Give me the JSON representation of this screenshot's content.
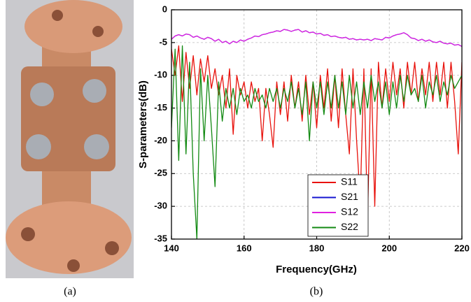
{
  "captions": [
    "(a)",
    "(b)"
  ],
  "chart_data": {
    "type": "line",
    "x_label": "Frequency(GHz)",
    "y_label": "S-parameters(dB)",
    "x": [
      140,
      141,
      142,
      143,
      144,
      145,
      146,
      147,
      148,
      149,
      150,
      151,
      152,
      153,
      154,
      155,
      156,
      157,
      158,
      159,
      160,
      161,
      162,
      163,
      164,
      165,
      166,
      167,
      168,
      169,
      170,
      171,
      172,
      173,
      174,
      175,
      176,
      177,
      178,
      179,
      180,
      181,
      182,
      183,
      184,
      185,
      186,
      187,
      188,
      189,
      190,
      191,
      192,
      193,
      194,
      195,
      196,
      197,
      198,
      199,
      200,
      201,
      202,
      203,
      204,
      205,
      206,
      207,
      208,
      209,
      210,
      211,
      212,
      213,
      214,
      215,
      216,
      217,
      218,
      219,
      220
    ],
    "series": [
      {
        "name": "S11",
        "color": "#e8120c",
        "values": [
          -6,
          -10,
          -5.5,
          -14,
          -6.5,
          -12,
          -7,
          -13,
          -7.5,
          -11,
          -7,
          -12,
          -9,
          -13,
          -10,
          -15,
          -9,
          -19,
          -10,
          -13,
          -11,
          -15,
          -11,
          -14,
          -12,
          -20,
          -12,
          -16,
          -21,
          -11,
          -16,
          -11,
          -17,
          -10,
          -15,
          -11,
          -17,
          -10,
          -16,
          -11,
          -18,
          -10,
          -15,
          -9,
          -17,
          -10,
          -18,
          -9,
          -16,
          -22,
          -9,
          -20,
          -29,
          -9,
          -32,
          -9,
          -30,
          -8,
          -15,
          -9,
          -14,
          -8,
          -13,
          -9,
          -15,
          -8,
          -13,
          -8,
          -14,
          -9,
          -13,
          -8,
          -14,
          -8,
          -13,
          -8,
          -15,
          -8,
          -14,
          -22,
          -8
        ]
      },
      {
        "name": "S21",
        "color": "#1515d0",
        "values": [
          -4.5,
          -4,
          -3.8,
          -4,
          -3.7,
          -3.8,
          -4.2,
          -4,
          -4.3,
          -4.5,
          -4.2,
          -4.4,
          -4.8,
          -4.5,
          -5,
          -4.8,
          -5.2,
          -4.8,
          -5,
          -4.6,
          -4.8,
          -4.5,
          -4.3,
          -4,
          -4.1,
          -3.8,
          -3.7,
          -3.5,
          -3.4,
          -3.2,
          -3.3,
          -3,
          -3.1,
          -3.3,
          -3.1,
          -3,
          -3.4,
          -3.2,
          -3.5,
          -3.4,
          -3.7,
          -3.6,
          -3.9,
          -3.8,
          -4.1,
          -4,
          -4.2,
          -4.3,
          -4.2,
          -4.5,
          -4.4,
          -4.6,
          -4.5,
          -4.6,
          -4.5,
          -4.7,
          -4.4,
          -4.5,
          -4.6,
          -4.2,
          -4.3,
          -4,
          -3.8,
          -3.7,
          -3.5,
          -3.8,
          -4.3,
          -4.4,
          -4.7,
          -4.5,
          -4.8,
          -4.6,
          -4.9,
          -5,
          -4.8,
          -5.1,
          -5.2,
          -5.1,
          -5.4,
          -5.3,
          -5.6
        ]
      },
      {
        "name": "S12",
        "color": "#e020e0",
        "values": [
          -4.5,
          -4,
          -3.8,
          -4,
          -3.7,
          -3.8,
          -4.2,
          -4,
          -4.3,
          -4.5,
          -4.2,
          -4.4,
          -4.8,
          -4.5,
          -5,
          -4.8,
          -5.2,
          -4.8,
          -5,
          -4.6,
          -4.8,
          -4.5,
          -4.3,
          -4,
          -4.1,
          -3.8,
          -3.7,
          -3.5,
          -3.4,
          -3.2,
          -3.3,
          -3,
          -3.1,
          -3.3,
          -3.1,
          -3,
          -3.4,
          -3.2,
          -3.5,
          -3.4,
          -3.7,
          -3.6,
          -3.9,
          -3.8,
          -4.1,
          -4,
          -4.2,
          -4.3,
          -4.2,
          -4.5,
          -4.4,
          -4.6,
          -4.5,
          -4.6,
          -4.5,
          -4.7,
          -4.4,
          -4.5,
          -4.6,
          -4.2,
          -4.3,
          -4,
          -3.8,
          -3.7,
          -3.5,
          -3.8,
          -4.3,
          -4.4,
          -4.7,
          -4.5,
          -4.8,
          -4.6,
          -4.9,
          -5,
          -4.8,
          -5.1,
          -5.2,
          -5.1,
          -5.4,
          -5.3,
          -5.6
        ]
      },
      {
        "name": "S22",
        "color": "#138a13",
        "values": [
          -18,
          -6,
          -23,
          -5.5,
          -22,
          -8,
          -25,
          -35,
          -9,
          -20,
          -10,
          -18,
          -27,
          -11,
          -17,
          -12,
          -15,
          -12,
          -16,
          -12,
          -14,
          -13,
          -15,
          -12,
          -14,
          -13,
          -15,
          -12,
          -14,
          -12,
          -15,
          -12,
          -14,
          -11,
          -15,
          -12,
          -16,
          -11,
          -20,
          -11,
          -15,
          -11,
          -16,
          -11,
          -15,
          -10,
          -15,
          -11,
          -16,
          -10,
          -15,
          -11,
          -16,
          -11,
          -15,
          -10,
          -14,
          -11,
          -15,
          -11,
          -16,
          -11,
          -15,
          -10,
          -14,
          -10,
          -13,
          -12,
          -14,
          -10,
          -15,
          -11,
          -13,
          -10,
          -14,
          -11,
          -13,
          -10,
          -12,
          -11,
          -10
        ]
      }
    ],
    "xlim": [
      140,
      220
    ],
    "xticks": [
      140,
      160,
      180,
      200,
      220
    ],
    "ylim": [
      -35,
      0
    ],
    "yticks": [
      0,
      -5,
      -10,
      -15,
      -20,
      -25,
      -30,
      -35
    ],
    "grid": true
  }
}
